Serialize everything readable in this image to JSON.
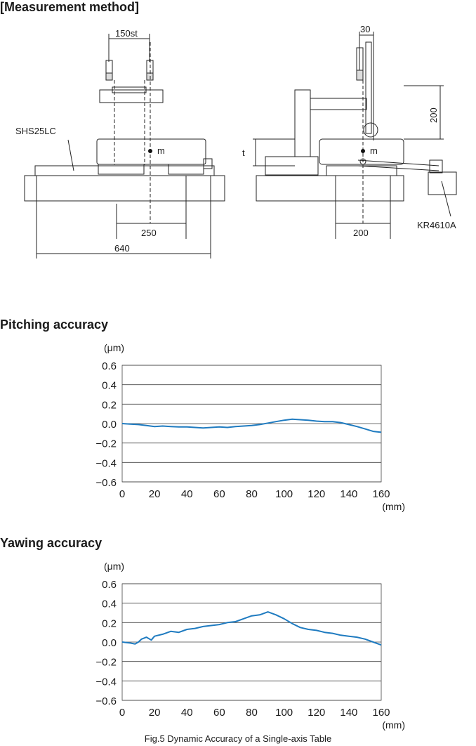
{
  "headings": {
    "measurement": "[Measurement method]",
    "pitching": "Pitching accuracy",
    "yawing": "Yawing accuracy"
  },
  "diagram": {
    "dim_stroke": "150st",
    "label_rail": "SHS25LC",
    "label_m_left": "m",
    "dim_250": "250",
    "dim_640": "640",
    "dim_30": "30",
    "dim_200_vertical": "200",
    "label_t": "t",
    "label_m_right": "m",
    "dim_200_bottom": "200",
    "label_actuator": "KR4610A"
  },
  "caption": "Fig.5 Dynamic Accuracy of a Single-axis Table",
  "line_color": "#1f7bc0",
  "chart_data": [
    {
      "type": "line",
      "title": "Pitching accuracy",
      "ylabel": "(μm)",
      "xlabel": "(mm)",
      "xlim": [
        0,
        160
      ],
      "ylim": [
        -0.6,
        0.6
      ],
      "xticks": [
        "0",
        "20",
        "40",
        "60",
        "80",
        "100",
        "120",
        "140",
        "160"
      ],
      "yticks": [
        "0.6",
        "0.4",
        "0.2",
        "0.0",
        "−0.2",
        "−0.4",
        "−0.6"
      ],
      "grid": true,
      "series": [
        {
          "x": [
            0,
            5,
            10,
            15,
            20,
            25,
            30,
            35,
            40,
            45,
            50,
            55,
            60,
            65,
            70,
            75,
            80,
            85,
            90,
            95,
            100,
            105,
            110,
            115,
            120,
            125,
            130,
            135,
            140,
            145,
            150,
            155,
            160
          ],
          "values": [
            0.0,
            -0.005,
            -0.01,
            -0.02,
            -0.03,
            -0.025,
            -0.03,
            -0.035,
            -0.035,
            -0.04,
            -0.045,
            -0.04,
            -0.035,
            -0.04,
            -0.03,
            -0.025,
            -0.02,
            -0.01,
            0.005,
            0.02,
            0.035,
            0.045,
            0.04,
            0.035,
            0.025,
            0.02,
            0.02,
            0.01,
            -0.01,
            -0.03,
            -0.055,
            -0.08,
            -0.09
          ]
        }
      ]
    },
    {
      "type": "line",
      "title": "Yawing accuracy",
      "ylabel": "(μm)",
      "xlabel": "(mm)",
      "xlim": [
        0,
        160
      ],
      "ylim": [
        -0.6,
        0.6
      ],
      "xticks": [
        "0",
        "20",
        "40",
        "60",
        "80",
        "100",
        "120",
        "140",
        "160"
      ],
      "yticks": [
        "0.6",
        "0.4",
        "0.2",
        "0.0",
        "−0.2",
        "−0.4",
        "−0.6"
      ],
      "grid": true,
      "series": [
        {
          "x": [
            0,
            5,
            8,
            10,
            12,
            15,
            18,
            20,
            25,
            30,
            35,
            40,
            45,
            50,
            55,
            60,
            65,
            70,
            75,
            80,
            85,
            90,
            95,
            100,
            105,
            110,
            115,
            120,
            125,
            130,
            135,
            140,
            145,
            150,
            155,
            160
          ],
          "values": [
            0.0,
            -0.01,
            -0.02,
            0.0,
            0.03,
            0.05,
            0.02,
            0.06,
            0.08,
            0.11,
            0.1,
            0.13,
            0.14,
            0.16,
            0.17,
            0.18,
            0.2,
            0.21,
            0.24,
            0.27,
            0.28,
            0.31,
            0.28,
            0.24,
            0.19,
            0.15,
            0.13,
            0.12,
            0.1,
            0.09,
            0.07,
            0.06,
            0.05,
            0.03,
            0.0,
            -0.03
          ]
        }
      ]
    }
  ]
}
